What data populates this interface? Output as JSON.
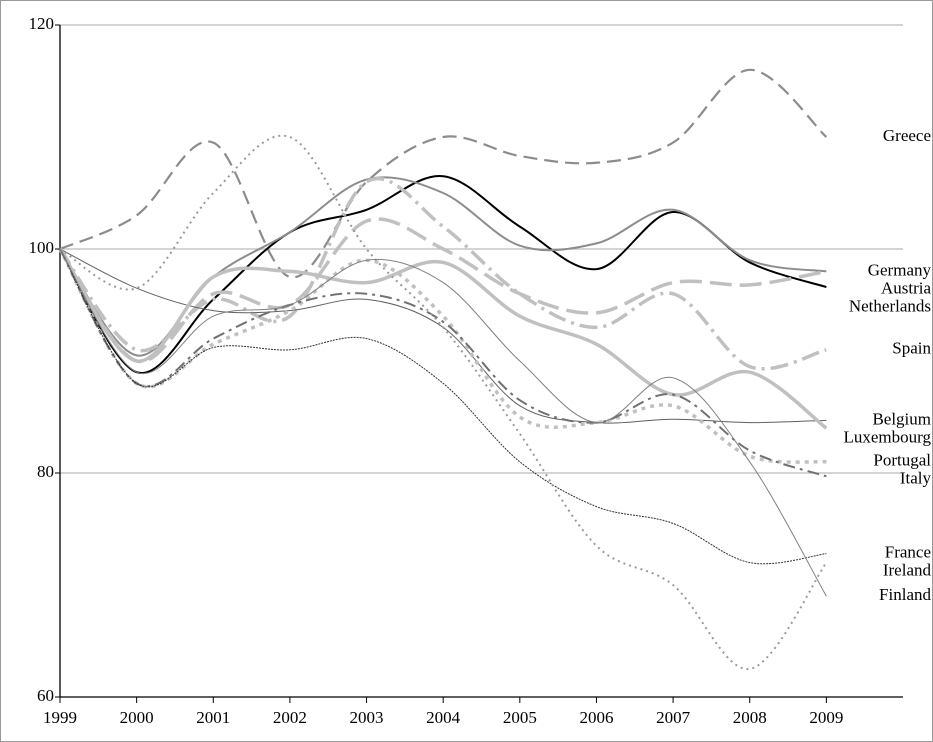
{
  "chart_data": {
    "type": "line",
    "x": [
      1999,
      2000,
      2001,
      2002,
      2003,
      2004,
      2005,
      2006,
      2007,
      2008,
      2009
    ],
    "xlim": [
      1999,
      2010
    ],
    "xticks": [
      1999,
      2000,
      2001,
      2002,
      2003,
      2004,
      2005,
      2006,
      2007,
      2008,
      2009
    ],
    "ylim": [
      60,
      120
    ],
    "yticks": [
      60,
      80,
      100,
      120
    ],
    "grid": true,
    "series": [
      {
        "name": "Greece",
        "color": "#8c8c8c",
        "values": [
          100,
          103,
          109.5,
          97.5,
          106,
          110,
          108.3,
          107.7,
          109.5,
          116,
          110
        ]
      },
      {
        "name": "Netherlands",
        "color": "#000000",
        "values": [
          100,
          89,
          95.5,
          101.5,
          103.5,
          106.5,
          102,
          98.2,
          103.3,
          98.8,
          96.6
        ]
      },
      {
        "name": "Germany",
        "color": "#8c8c8c",
        "values": [
          100,
          90.5,
          97.5,
          101.5,
          106.2,
          105,
          100.3,
          100.5,
          103.5,
          99,
          98
        ]
      },
      {
        "name": "Austria",
        "color": "#c0c0c0",
        "values": [
          100,
          90,
          96,
          95,
          102.5,
          100,
          96,
          94.3,
          97,
          96.8,
          98
        ]
      },
      {
        "name": "Spain",
        "color": "#c0c0c0",
        "values": [
          100,
          91,
          95.5,
          94,
          106,
          102,
          96,
          93,
          96,
          89.5,
          91
        ]
      },
      {
        "name": "Belgium",
        "color": "#606060",
        "values": [
          100,
          96.5,
          94.5,
          94.5,
          95.5,
          93,
          86,
          84.5,
          84.8,
          84.5,
          84.7
        ]
      },
      {
        "name": "Luxembourg",
        "color": "#c0c0c0",
        "values": [
          100,
          90,
          97.5,
          98,
          97,
          98.8,
          94,
          91.5,
          87,
          89,
          84
        ]
      },
      {
        "name": "Portugal",
        "color": "#c0c0c0",
        "values": [
          100,
          88,
          91.5,
          94.5,
          99,
          94,
          85,
          84.5,
          86,
          81.5,
          81
        ]
      },
      {
        "name": "Italy",
        "color": "#707070",
        "values": [
          100,
          88,
          92,
          95,
          96,
          93.5,
          86.5,
          84.5,
          87,
          82,
          79.7
        ]
      },
      {
        "name": "France",
        "color": "#303030",
        "values": [
          100,
          88,
          91.2,
          91,
          92,
          88,
          81,
          77,
          75.5,
          72,
          72.8
        ]
      },
      {
        "name": "Ireland",
        "color": "#9a9a9a",
        "values": [
          100,
          96.5,
          105,
          110,
          100,
          93,
          83.5,
          73.5,
          70,
          62.5,
          72
        ]
      },
      {
        "name": "Finland",
        "color": "#808080",
        "values": [
          100,
          89,
          94,
          95,
          99,
          97,
          90,
          84.5,
          88.5,
          81,
          69
        ]
      }
    ]
  }
}
